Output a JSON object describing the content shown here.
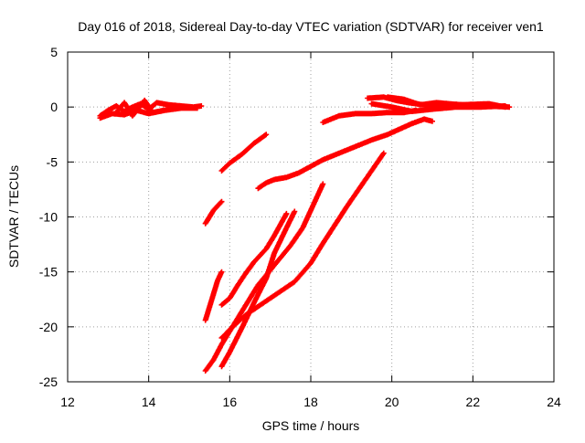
{
  "chart_data": {
    "type": "scatter",
    "title": "Day 016 of 2018, Sidereal Day-to-day VTEC variation (SDTVAR) for receiver ven1",
    "xlabel": "GPS time / hours",
    "ylabel": "SDTVAR / TECUs",
    "xlim": [
      12,
      24
    ],
    "ylim": [
      -25,
      5
    ],
    "xticks": [
      12,
      14,
      16,
      18,
      20,
      22,
      24
    ],
    "yticks": [
      5,
      0,
      -5,
      -10,
      -15,
      -20,
      -25
    ],
    "grid": true,
    "grid_style": "dotted",
    "marker": "plus",
    "series": [
      {
        "color": "#ff0000",
        "tracks": [
          [
            [
              12.8,
              -0.8
            ],
            [
              13.0,
              -0.3
            ],
            [
              13.2,
              0.1
            ],
            [
              13.4,
              -0.4
            ],
            [
              13.6,
              0.0
            ],
            [
              13.8,
              0.3
            ],
            [
              14.0,
              -0.2
            ],
            [
              14.2,
              0.4
            ],
            [
              14.5,
              0.2
            ],
            [
              14.8,
              0.1
            ],
            [
              15.1,
              0.0
            ],
            [
              15.3,
              0.1
            ]
          ],
          [
            [
              12.8,
              -1.0
            ],
            [
              13.1,
              -0.6
            ],
            [
              13.4,
              -0.7
            ],
            [
              13.7,
              -0.3
            ],
            [
              14.0,
              -0.6
            ],
            [
              14.4,
              -0.3
            ],
            [
              14.8,
              -0.1
            ],
            [
              15.2,
              -0.1
            ]
          ],
          [
            [
              13.2,
              -0.5
            ],
            [
              13.4,
              0.4
            ],
            [
              13.6,
              -0.8
            ],
            [
              13.9,
              0.6
            ],
            [
              14.1,
              -0.5
            ],
            [
              14.5,
              -0.2
            ]
          ],
          [
            [
              19.4,
              0.8
            ],
            [
              19.8,
              0.9
            ],
            [
              20.1,
              0.6
            ],
            [
              20.4,
              0.4
            ],
            [
              20.8,
              0.2
            ],
            [
              21.2,
              0.3
            ],
            [
              21.8,
              0.2
            ],
            [
              22.3,
              0.1
            ],
            [
              22.9,
              0.0
            ]
          ],
          [
            [
              19.5,
              0.3
            ],
            [
              20.0,
              0.0
            ],
            [
              20.5,
              -0.4
            ],
            [
              21.0,
              -0.2
            ],
            [
              21.6,
              0.0
            ],
            [
              22.2,
              0.0
            ],
            [
              22.8,
              0.1
            ]
          ],
          [
            [
              19.9,
              0.9
            ],
            [
              20.3,
              0.7
            ],
            [
              20.7,
              0.2
            ],
            [
              21.1,
              0.4
            ],
            [
              21.7,
              0.2
            ],
            [
              22.4,
              0.3
            ],
            [
              22.8,
              0.0
            ]
          ],
          [
            [
              18.3,
              -1.4
            ],
            [
              18.7,
              -0.8
            ],
            [
              19.1,
              -0.6
            ],
            [
              19.5,
              -0.6
            ],
            [
              19.9,
              -0.5
            ],
            [
              20.3,
              -0.5
            ],
            [
              20.6,
              -0.3
            ]
          ],
          [
            [
              16.7,
              -7.4
            ],
            [
              16.9,
              -6.9
            ],
            [
              17.1,
              -6.6
            ],
            [
              17.4,
              -6.4
            ],
            [
              17.7,
              -6.0
            ],
            [
              18.0,
              -5.4
            ],
            [
              18.3,
              -4.8
            ],
            [
              18.7,
              -4.2
            ],
            [
              19.1,
              -3.6
            ],
            [
              19.5,
              -3.0
            ],
            [
              19.9,
              -2.5
            ],
            [
              20.2,
              -2.0
            ],
            [
              20.5,
              -1.5
            ],
            [
              20.8,
              -1.1
            ],
            [
              21.0,
              -1.3
            ]
          ],
          [
            [
              15.8,
              -5.8
            ],
            [
              16.0,
              -5.1
            ],
            [
              16.3,
              -4.3
            ],
            [
              16.6,
              -3.3
            ],
            [
              16.9,
              -2.5
            ]
          ],
          [
            [
              15.4,
              -10.6
            ],
            [
              15.5,
              -10.0
            ],
            [
              15.6,
              -9.4
            ],
            [
              15.8,
              -8.6
            ]
          ],
          [
            [
              15.4,
              -19.4
            ],
            [
              15.5,
              -18.2
            ],
            [
              15.6,
              -17.0
            ],
            [
              15.7,
              -15.8
            ],
            [
              15.8,
              -15.0
            ]
          ],
          [
            [
              15.8,
              -18.0
            ],
            [
              16.0,
              -17.4
            ],
            [
              16.2,
              -16.2
            ],
            [
              16.4,
              -15.1
            ],
            [
              16.6,
              -14.1
            ],
            [
              16.9,
              -12.9
            ],
            [
              17.1,
              -11.7
            ],
            [
              17.4,
              -9.7
            ]
          ],
          [
            [
              15.8,
              -21.0
            ],
            [
              16.1,
              -19.9
            ],
            [
              16.4,
              -18.9
            ],
            [
              16.8,
              -17.9
            ],
            [
              17.2,
              -16.9
            ],
            [
              17.6,
              -15.9
            ],
            [
              18.0,
              -14.2
            ],
            [
              18.3,
              -12.4
            ],
            [
              18.6,
              -10.7
            ],
            [
              18.9,
              -9.0
            ],
            [
              19.2,
              -7.4
            ],
            [
              19.5,
              -5.8
            ],
            [
              19.8,
              -4.2
            ]
          ],
          [
            [
              15.4,
              -24.0
            ],
            [
              15.6,
              -23.0
            ],
            [
              15.8,
              -21.6
            ],
            [
              16.1,
              -19.8
            ],
            [
              16.4,
              -18.0
            ],
            [
              16.7,
              -16.2
            ],
            [
              17.1,
              -14.4
            ],
            [
              17.5,
              -12.6
            ],
            [
              17.8,
              -11.0
            ],
            [
              18.0,
              -9.4
            ],
            [
              18.3,
              -7.0
            ]
          ],
          [
            [
              15.8,
              -23.6
            ],
            [
              16.0,
              -22.3
            ],
            [
              16.3,
              -20.1
            ],
            [
              16.6,
              -17.8
            ],
            [
              16.9,
              -15.6
            ],
            [
              17.1,
              -13.3
            ],
            [
              17.4,
              -11.0
            ],
            [
              17.6,
              -9.5
            ]
          ]
        ]
      }
    ]
  }
}
